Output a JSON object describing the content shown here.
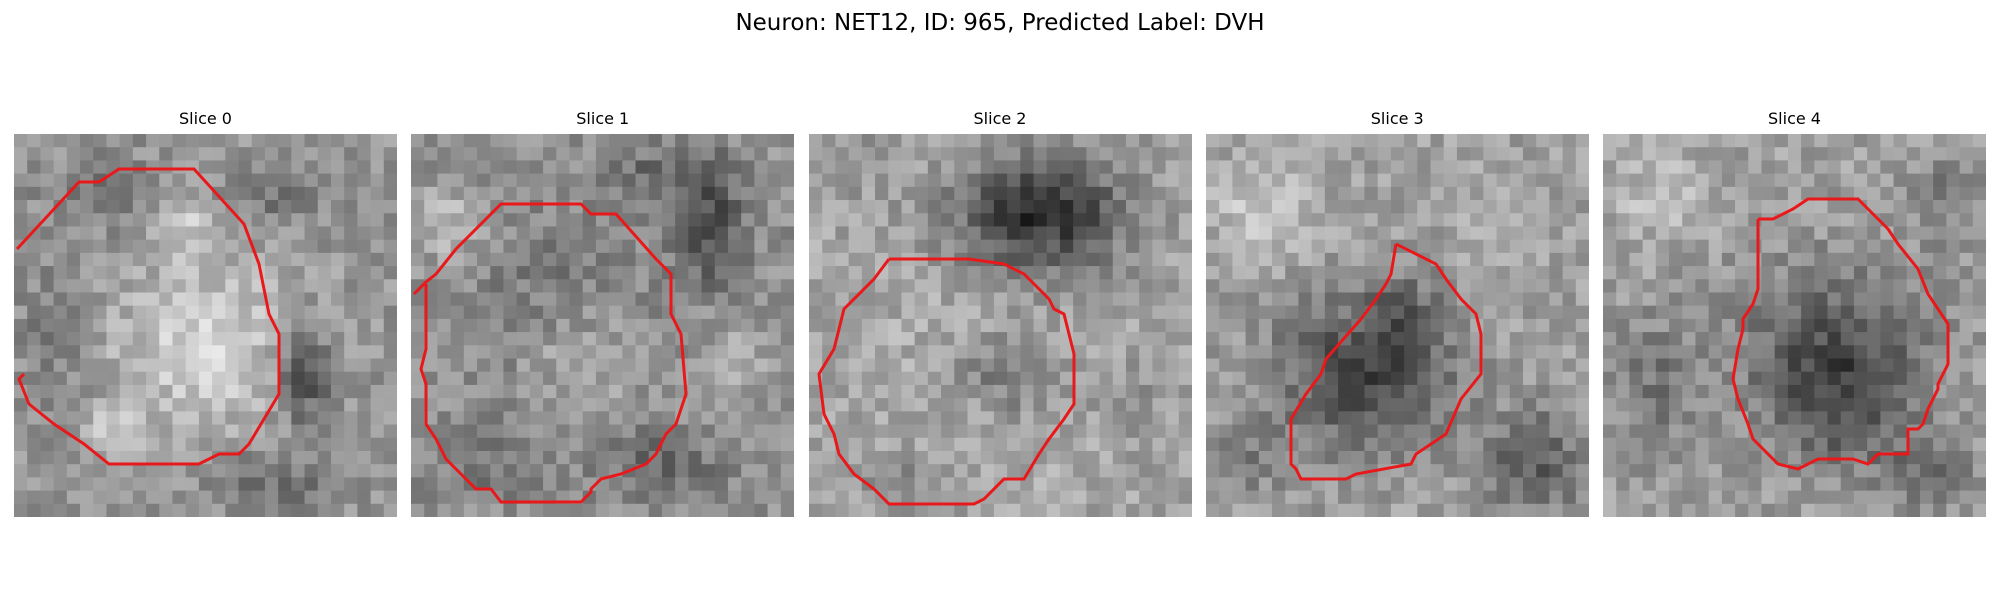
{
  "figure": {
    "title": "Neuron: NET12, ID: 965, Predicted Label: DVH",
    "contour_color": "#e8181b",
    "colormap": "gray"
  },
  "slices": [
    {
      "title": "Slice 0"
    },
    {
      "title": "Slice 1"
    },
    {
      "title": "Slice 2"
    },
    {
      "title": "Slice 3"
    },
    {
      "title": "Slice 4"
    }
  ]
}
